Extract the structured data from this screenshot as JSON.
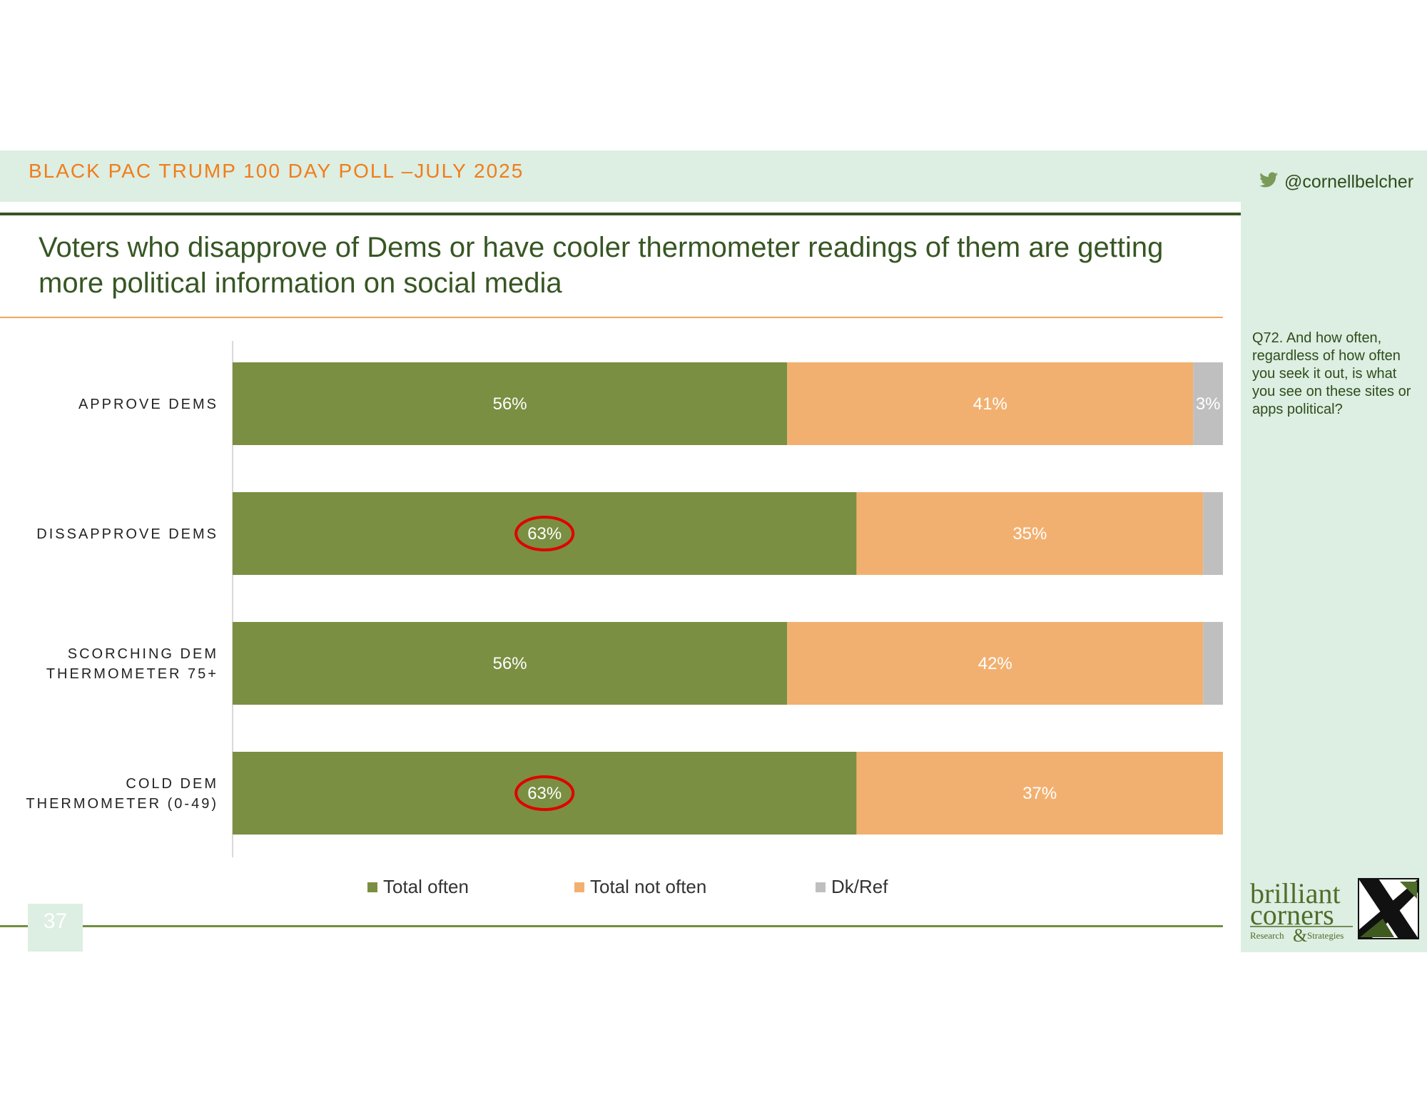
{
  "header": {
    "title": "BLACK PAC TRUMP 100 DAY POLL –JULY 2025",
    "twitter_handle": "@cornellbelcher",
    "twitter_icon": "twitter-bird-icon"
  },
  "slide": {
    "title": "Voters who disapprove of Dems or have cooler thermometer readings of them are getting more political information on social media",
    "question": "Q72. And how often, regardless of how often you seek it out, is what you see on these sites or apps political?",
    "page_number": "37"
  },
  "logo": {
    "line1": "brilliant",
    "line2": "corners",
    "line3a": "Research",
    "ampersand": "&",
    "line3b": "Strategies"
  },
  "colors": {
    "often": "#7a8f42",
    "not_often": "#f2b070",
    "dk_ref": "#bfbfbf",
    "accent_orange": "#f07d1b",
    "dark_green": "#375623",
    "highlight_circle": "#e00000"
  },
  "chart_data": {
    "type": "bar",
    "orientation": "horizontal",
    "stacked": true,
    "categories": [
      "APPROVE DEMS",
      "DISSAPPROVE DEMS",
      "SCORCHING DEM THERMOMETER 75+",
      "COLD DEM THERMOMETER (0-49)"
    ],
    "series": [
      {
        "name": "Total often",
        "values": [
          56,
          63,
          56,
          63
        ],
        "labels": [
          "56%",
          "63%",
          "56%",
          "63%"
        ]
      },
      {
        "name": "Total not often",
        "values": [
          41,
          35,
          42,
          37
        ],
        "labels": [
          "41%",
          "35%",
          "42%",
          "37%"
        ]
      },
      {
        "name": "Dk/Ref",
        "values": [
          3,
          2,
          2,
          0
        ],
        "labels": [
          "3%",
          "",
          "",
          ""
        ]
      }
    ],
    "xlim": [
      0,
      100
    ],
    "legend_position": "bottom",
    "grid": false,
    "highlighted": [
      {
        "series": "Total often",
        "category": "DISSAPPROVE DEMS"
      },
      {
        "series": "Total often",
        "category": "COLD DEM THERMOMETER (0-49)"
      }
    ]
  }
}
